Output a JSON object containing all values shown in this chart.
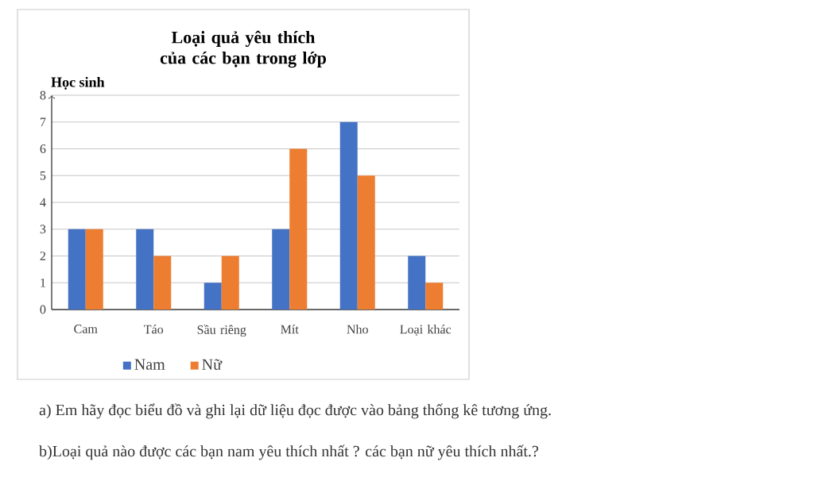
{
  "chart_data": {
    "type": "bar",
    "title": "Loại quả yêu thích của các bạn trong lớp",
    "ylabel": "Học sinh",
    "categories": [
      "Cam",
      "Táo",
      "Sầu riêng",
      "Mít",
      "Nho",
      "Loại khác"
    ],
    "series": [
      {
        "name": "Nam",
        "color": "#4472c4",
        "values": [
          3,
          3,
          1,
          3,
          7,
          2
        ]
      },
      {
        "name": "Nữ",
        "color": "#ed7d31",
        "values": [
          3,
          2,
          2,
          6,
          5,
          1
        ]
      }
    ],
    "ylim": [
      0,
      8
    ],
    "yticks": [
      0,
      1,
      2,
      3,
      4,
      5,
      6,
      7,
      8
    ],
    "grid": "y",
    "legend": "bottom",
    "annotations": [
      "a) Em hãy đọc biểu đồ và ghi lại dữ liệu đọc được vào bảng thống kê tương ứng.",
      "b)Loại quả nào được các bạn nam yêu thích nhất ? các bạn nữ yêu thích nhất.?"
    ]
  }
}
